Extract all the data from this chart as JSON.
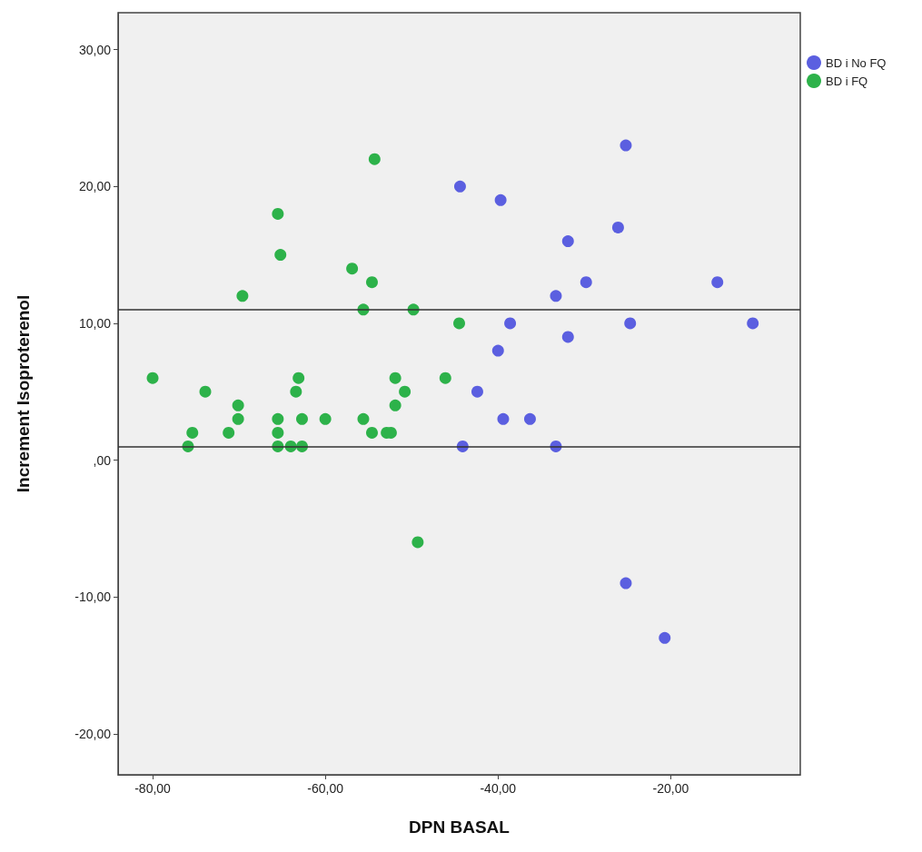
{
  "chart_data": {
    "type": "scatter",
    "xlabel": "DPN BASAL",
    "ylabel": "Increment Isoproterenol",
    "xlim": [
      -84,
      -5
    ],
    "ylim": [
      -23,
      32.7
    ],
    "xticks": [
      {
        "value": -80,
        "label": "-80,00"
      },
      {
        "value": -60,
        "label": "-60,00"
      },
      {
        "value": -40,
        "label": "-40,00"
      },
      {
        "value": -20,
        "label": "-20,00"
      }
    ],
    "yticks": [
      {
        "value": -20,
        "label": "-20,00"
      },
      {
        "value": -10,
        "label": "-10,00"
      },
      {
        "value": 0,
        "label": ",00"
      },
      {
        "value": 10,
        "label": "10,00"
      },
      {
        "value": 20,
        "label": "20,00"
      },
      {
        "value": 30,
        "label": "30,00"
      }
    ],
    "grid": false,
    "legend": "top right",
    "marker": "circle",
    "ref_lines": [
      {
        "axis": "y",
        "value": 11,
        "label": null,
        "color": "#333333"
      },
      {
        "axis": "y",
        "value": 1,
        "label": null,
        "color": "#333333"
      }
    ],
    "series": [
      {
        "name": "BD i No FQ",
        "color": "#5b5fe0",
        "x": [
          -25.2,
          -44.4,
          -39.7,
          -26.1,
          -31.9,
          -29.8,
          -14.6,
          -33.3,
          -10.5,
          -24.7,
          -38.6,
          -31.9,
          -40,
          -42.4,
          -39.4,
          -36.3,
          -44.1,
          -33.3,
          -25.2,
          -20.7
        ],
        "values": [
          23,
          20,
          19,
          17,
          16,
          13,
          13,
          12,
          10,
          10,
          10,
          9,
          8,
          5,
          3,
          3,
          1,
          1,
          -9,
          -13
        ]
      },
      {
        "name": "BD i FQ",
        "color": "#2db24a",
        "x": [
          -54.3,
          -65.5,
          -65.2,
          -56.9,
          -54.6,
          -69.6,
          -55.6,
          -49.8,
          -44.5,
          -80,
          -73.9,
          -70.1,
          -70.1,
          -75.4,
          -75.9,
          -71.2,
          -63.1,
          -63.4,
          -65.5,
          -62.7,
          -65.5,
          -65.5,
          -64,
          -62.7,
          -60,
          -55.6,
          -54.6,
          -52.9,
          -52.4,
          -51.9,
          -50.8,
          -51.9,
          -46.1,
          -49.3
        ],
        "values": [
          22,
          18,
          15,
          14,
          13,
          12,
          11,
          11,
          10,
          6,
          5,
          4,
          3,
          2,
          1,
          2,
          6,
          5,
          3,
          3,
          2,
          1,
          1,
          1,
          3,
          3,
          2,
          2,
          2,
          6,
          5,
          4,
          6,
          -6
        ]
      }
    ]
  }
}
